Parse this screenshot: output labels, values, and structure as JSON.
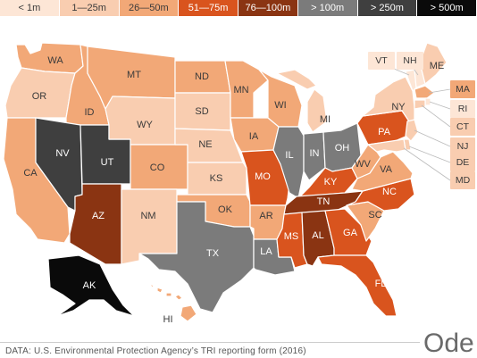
{
  "legend": [
    {
      "label": "< 1m",
      "color": "#fde6d6",
      "text": "#3a3a3a"
    },
    {
      "label": "1—25m",
      "color": "#f9cdb0",
      "text": "#3a3a3a"
    },
    {
      "label": "26—50m",
      "color": "#f2a877",
      "text": "#3a3a3a"
    },
    {
      "label": "51—75m",
      "color": "#d9541e",
      "text": "#ffffff"
    },
    {
      "label": "76—100m",
      "color": "#8a3412",
      "text": "#ffffff"
    },
    {
      "label": "> 100m",
      "color": "#7b7b7b",
      "text": "#ffffff"
    },
    {
      "label": "> 250m",
      "color": "#3f3f3f",
      "text": "#ffffff"
    },
    {
      "label": "> 500m",
      "color": "#0a0a0a",
      "text": "#ffffff"
    }
  ],
  "states": [
    {
      "abbr": "WA",
      "category": "26—50m"
    },
    {
      "abbr": "OR",
      "category": "1—25m"
    },
    {
      "abbr": "CA",
      "category": "26—50m"
    },
    {
      "abbr": "ID",
      "category": "26—50m"
    },
    {
      "abbr": "NV",
      "category": "> 250m"
    },
    {
      "abbr": "UT",
      "category": "> 250m"
    },
    {
      "abbr": "AZ",
      "category": "76—100m"
    },
    {
      "abbr": "MT",
      "category": "26—50m"
    },
    {
      "abbr": "WY",
      "category": "1—25m"
    },
    {
      "abbr": "CO",
      "category": "26—50m"
    },
    {
      "abbr": "NM",
      "category": "1—25m"
    },
    {
      "abbr": "ND",
      "category": "26—50m"
    },
    {
      "abbr": "SD",
      "category": "1—25m"
    },
    {
      "abbr": "NE",
      "category": "1—25m"
    },
    {
      "abbr": "KS",
      "category": "1—25m"
    },
    {
      "abbr": "OK",
      "category": "26—50m"
    },
    {
      "abbr": "TX",
      "category": "> 100m"
    },
    {
      "abbr": "MN",
      "category": "26—50m"
    },
    {
      "abbr": "IA",
      "category": "26—50m"
    },
    {
      "abbr": "MO",
      "category": "51—75m"
    },
    {
      "abbr": "AR",
      "category": "26—50m"
    },
    {
      "abbr": "LA",
      "category": "> 100m"
    },
    {
      "abbr": "WI",
      "category": "26—50m"
    },
    {
      "abbr": "IL",
      "category": "> 100m"
    },
    {
      "abbr": "MI",
      "category": "1—25m"
    },
    {
      "abbr": "IN",
      "category": "> 100m"
    },
    {
      "abbr": "OH",
      "category": "> 100m"
    },
    {
      "abbr": "KY",
      "category": "51—75m"
    },
    {
      "abbr": "TN",
      "category": "76—100m"
    },
    {
      "abbr": "MS",
      "category": "51—75m"
    },
    {
      "abbr": "AL",
      "category": "76—100m"
    },
    {
      "abbr": "GA",
      "category": "51—75m"
    },
    {
      "abbr": "FL",
      "category": "51—75m"
    },
    {
      "abbr": "SC",
      "category": "26—50m"
    },
    {
      "abbr": "NC",
      "category": "51—75m"
    },
    {
      "abbr": "VA",
      "category": "26—50m"
    },
    {
      "abbr": "WV",
      "category": "26—50m"
    },
    {
      "abbr": "PA",
      "category": "51—75m"
    },
    {
      "abbr": "NY",
      "category": "1—25m"
    },
    {
      "abbr": "VT",
      "category": "< 1m"
    },
    {
      "abbr": "NH",
      "category": "< 1m"
    },
    {
      "abbr": "ME",
      "category": "1—25m"
    },
    {
      "abbr": "MA",
      "category": "26—50m"
    },
    {
      "abbr": "RI",
      "category": "< 1m"
    },
    {
      "abbr": "CT",
      "category": "1—25m"
    },
    {
      "abbr": "NJ",
      "category": "1—25m"
    },
    {
      "abbr": "DE",
      "category": "1—25m"
    },
    {
      "abbr": "MD",
      "category": "1—25m"
    },
    {
      "abbr": "AK",
      "category": "> 500m"
    },
    {
      "abbr": "HI",
      "category": "26—50m"
    }
  ],
  "source_text": "DATA: U.S. Environmental Protection Agency’s TRI reporting form (2016)",
  "brand": "Ode"
}
